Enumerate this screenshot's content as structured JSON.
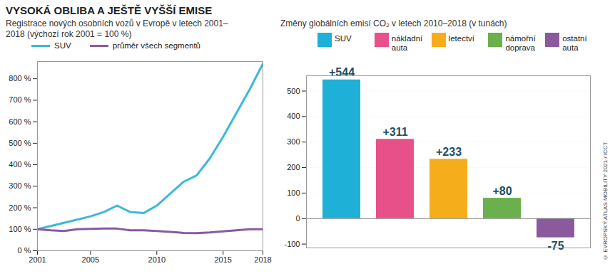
{
  "title": "VYSOKÁ OBLIBA A JEŠTĚ VYŠŠÍ EMISE",
  "source": "© EVROPSKÝ ATLAS MOBILITY 2021 / ICCT",
  "chart_data": [
    {
      "type": "line",
      "title": "Registrace nových osobních vozů v Evropě v letech 2001–2018 (výchozí rok 2001 = 100 %)",
      "x": [
        2001,
        2002,
        2003,
        2004,
        2005,
        2006,
        2007,
        2008,
        2009,
        2010,
        2011,
        2012,
        2013,
        2014,
        2015,
        2016,
        2017,
        2018
      ],
      "series": [
        {
          "name": "SUV",
          "color": "#3db8d8",
          "values": [
            100,
            115,
            130,
            145,
            160,
            180,
            210,
            180,
            175,
            210,
            265,
            320,
            350,
            430,
            530,
            640,
            750,
            870
          ]
        },
        {
          "name": "průměr všech segmentů",
          "color": "#8a5a9e",
          "values": [
            100,
            95,
            92,
            100,
            102,
            103,
            103,
            95,
            95,
            92,
            88,
            83,
            82,
            85,
            90,
            95,
            100,
            100
          ]
        }
      ],
      "xlim": [
        2001,
        2018
      ],
      "xticks": [
        2001,
        2005,
        2010,
        2015,
        2018
      ],
      "ylim": [
        0,
        880
      ],
      "yticks": [
        {
          "value": 0,
          "label": "0 %"
        },
        {
          "value": 100,
          "label": "100 %"
        },
        {
          "value": 200,
          "label": "200 %"
        },
        {
          "value": 300,
          "label": "300 %"
        },
        {
          "value": 400,
          "label": "400 %"
        },
        {
          "value": 500,
          "label": "500 %"
        },
        {
          "value": 600,
          "label": "600 %"
        },
        {
          "value": 700,
          "label": "700 %"
        },
        {
          "value": 800,
          "label": "800 %"
        }
      ],
      "grid": false,
      "legend": "top"
    },
    {
      "type": "bar",
      "title": "Změny globálních emisí CO₂ v letech 2010–2018 (v tunách)",
      "categories": [
        "SUV",
        "nákladní auta",
        "letectví",
        "námořní doprava",
        "ostatní auta"
      ],
      "values": [
        544,
        311,
        233,
        80,
        -75
      ],
      "value_labels": [
        "+544",
        "+311",
        "+233",
        "+80",
        "-75"
      ],
      "colors": [
        "#1fb0d8",
        "#e8508a",
        "#f6ad1c",
        "#6ab04c",
        "#8b5a9c"
      ],
      "ylim": [
        -115,
        560
      ],
      "yticks": [
        -100,
        0,
        100,
        200,
        300,
        400,
        500
      ],
      "grid": true,
      "data_labels": true,
      "tick_labels": "y",
      "legend": "top"
    }
  ]
}
